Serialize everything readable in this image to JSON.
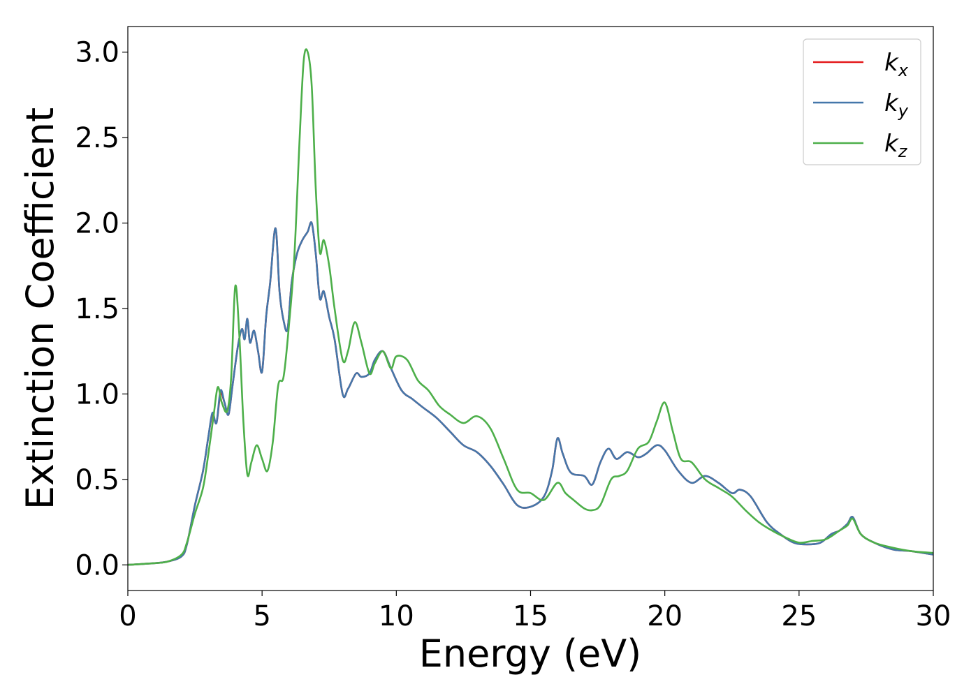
{
  "chart_data": {
    "type": "line",
    "xlabel": "Energy (eV)",
    "ylabel": "Extinction Coefficient",
    "xlim": [
      0,
      30
    ],
    "ylim": [
      -0.15,
      3.15
    ],
    "x_ticks": [
      0,
      5,
      10,
      15,
      20,
      25,
      30
    ],
    "x_tick_labels": [
      "0",
      "5",
      "10",
      "15",
      "20",
      "25",
      "30"
    ],
    "y_ticks": [
      0.0,
      0.5,
      1.0,
      1.5,
      2.0,
      2.5,
      3.0
    ],
    "y_tick_labels": [
      "0.0",
      "0.5",
      "1.0",
      "1.5",
      "2.0",
      "2.5",
      "3.0"
    ],
    "grid": false,
    "legend_position": "top-right",
    "series": [
      {
        "name": "k",
        "subscript": "x",
        "color": "#e41a1c",
        "x": [
          0,
          1,
          1.5,
          2,
          2.2,
          2.5,
          2.8,
          3.0,
          3.15,
          3.3,
          3.45,
          3.6,
          3.75,
          3.9,
          4.1,
          4.25,
          4.35,
          4.45,
          4.55,
          4.7,
          4.85,
          5.0,
          5.15,
          5.3,
          5.5,
          5.65,
          5.8,
          5.95,
          6.1,
          6.3,
          6.5,
          6.7,
          6.85,
          7.0,
          7.15,
          7.3,
          7.5,
          7.7,
          8.0,
          8.2,
          8.5,
          8.7,
          9.0,
          9.2,
          9.5,
          9.8,
          10.2,
          10.6,
          11.0,
          11.5,
          12.0,
          12.5,
          13.0,
          13.5,
          14.0,
          14.5,
          15.0,
          15.5,
          15.8,
          16.0,
          16.2,
          16.5,
          17.0,
          17.3,
          17.6,
          17.9,
          18.2,
          18.6,
          19.0,
          19.3,
          19.7,
          20.0,
          20.5,
          21.0,
          21.5,
          22.0,
          22.5,
          22.8,
          23.2,
          23.8,
          24.3,
          24.8,
          25.3,
          25.8,
          26.2,
          26.5,
          26.8,
          27.0,
          27.3,
          27.8,
          28.5,
          29.2,
          30
        ],
        "values": [
          0.0,
          0.01,
          0.02,
          0.05,
          0.12,
          0.35,
          0.55,
          0.75,
          0.88,
          0.83,
          1.0,
          0.95,
          0.88,
          1.05,
          1.28,
          1.38,
          1.32,
          1.44,
          1.3,
          1.37,
          1.25,
          1.13,
          1.45,
          1.65,
          1.97,
          1.6,
          1.43,
          1.38,
          1.65,
          1.82,
          1.9,
          1.95,
          2.0,
          1.82,
          1.56,
          1.6,
          1.45,
          1.32,
          1.0,
          1.03,
          1.12,
          1.1,
          1.12,
          1.2,
          1.25,
          1.15,
          1.02,
          0.97,
          0.92,
          0.86,
          0.78,
          0.7,
          0.66,
          0.58,
          0.47,
          0.35,
          0.34,
          0.4,
          0.55,
          0.74,
          0.65,
          0.54,
          0.52,
          0.47,
          0.6,
          0.68,
          0.62,
          0.66,
          0.63,
          0.65,
          0.7,
          0.67,
          0.55,
          0.48,
          0.52,
          0.48,
          0.42,
          0.44,
          0.4,
          0.25,
          0.18,
          0.13,
          0.12,
          0.13,
          0.18,
          0.2,
          0.24,
          0.28,
          0.18,
          0.13,
          0.09,
          0.08,
          0.06
        ]
      },
      {
        "name": "k",
        "subscript": "y",
        "color": "#4477aa",
        "x": [
          0,
          1,
          1.5,
          2,
          2.2,
          2.5,
          2.8,
          3.0,
          3.15,
          3.3,
          3.45,
          3.6,
          3.75,
          3.9,
          4.1,
          4.25,
          4.35,
          4.45,
          4.55,
          4.7,
          4.85,
          5.0,
          5.15,
          5.3,
          5.5,
          5.65,
          5.8,
          5.95,
          6.1,
          6.3,
          6.5,
          6.7,
          6.85,
          7.0,
          7.15,
          7.3,
          7.5,
          7.7,
          8.0,
          8.2,
          8.5,
          8.7,
          9.0,
          9.2,
          9.5,
          9.8,
          10.2,
          10.6,
          11.0,
          11.5,
          12.0,
          12.5,
          13.0,
          13.5,
          14.0,
          14.5,
          15.0,
          15.5,
          15.8,
          16.0,
          16.2,
          16.5,
          17.0,
          17.3,
          17.6,
          17.9,
          18.2,
          18.6,
          19.0,
          19.3,
          19.7,
          20.0,
          20.5,
          21.0,
          21.5,
          22.0,
          22.5,
          22.8,
          23.2,
          23.8,
          24.3,
          24.8,
          25.3,
          25.8,
          26.2,
          26.5,
          26.8,
          27.0,
          27.3,
          27.8,
          28.5,
          29.2,
          30
        ],
        "values": [
          0.0,
          0.01,
          0.02,
          0.05,
          0.12,
          0.35,
          0.55,
          0.75,
          0.89,
          0.83,
          1.02,
          0.95,
          0.88,
          1.05,
          1.28,
          1.38,
          1.32,
          1.44,
          1.3,
          1.37,
          1.25,
          1.13,
          1.45,
          1.65,
          1.97,
          1.6,
          1.43,
          1.38,
          1.65,
          1.82,
          1.9,
          1.95,
          2.0,
          1.82,
          1.56,
          1.6,
          1.45,
          1.32,
          1.0,
          1.03,
          1.12,
          1.1,
          1.12,
          1.2,
          1.25,
          1.15,
          1.02,
          0.97,
          0.92,
          0.86,
          0.78,
          0.7,
          0.66,
          0.58,
          0.47,
          0.35,
          0.34,
          0.4,
          0.55,
          0.74,
          0.65,
          0.54,
          0.52,
          0.47,
          0.6,
          0.68,
          0.62,
          0.66,
          0.63,
          0.65,
          0.7,
          0.67,
          0.55,
          0.48,
          0.52,
          0.48,
          0.42,
          0.44,
          0.4,
          0.25,
          0.18,
          0.13,
          0.12,
          0.13,
          0.18,
          0.2,
          0.24,
          0.28,
          0.18,
          0.13,
          0.09,
          0.08,
          0.06
        ]
      },
      {
        "name": "k",
        "subscript": "z",
        "color": "#4daf4a",
        "x": [
          0,
          1,
          1.5,
          2,
          2.2,
          2.5,
          2.8,
          3.0,
          3.2,
          3.35,
          3.5,
          3.7,
          3.85,
          4.0,
          4.15,
          4.3,
          4.45,
          4.6,
          4.8,
          5.0,
          5.2,
          5.4,
          5.6,
          5.8,
          6.0,
          6.2,
          6.4,
          6.55,
          6.7,
          6.85,
          7.0,
          7.15,
          7.3,
          7.5,
          7.7,
          8.0,
          8.2,
          8.45,
          8.7,
          9.0,
          9.2,
          9.5,
          9.8,
          10.0,
          10.4,
          10.8,
          11.2,
          11.6,
          12.0,
          12.5,
          13.0,
          13.5,
          14.0,
          14.5,
          15.0,
          15.5,
          16.0,
          16.3,
          16.6,
          17.0,
          17.3,
          17.6,
          18.0,
          18.3,
          18.6,
          19.0,
          19.4,
          19.7,
          20.0,
          20.3,
          20.6,
          21.0,
          21.5,
          22.0,
          22.5,
          23.0,
          23.5,
          24.0,
          24.5,
          25.0,
          25.5,
          26.0,
          26.5,
          26.8,
          27.0,
          27.3,
          27.8,
          28.5,
          29.2,
          30
        ],
        "values": [
          0.0,
          0.01,
          0.02,
          0.06,
          0.13,
          0.3,
          0.45,
          0.65,
          0.88,
          1.04,
          0.95,
          0.9,
          1.1,
          1.63,
          1.35,
          0.85,
          0.53,
          0.6,
          0.7,
          0.62,
          0.55,
          0.72,
          1.05,
          1.1,
          1.4,
          1.8,
          2.5,
          2.95,
          3.0,
          2.8,
          2.2,
          1.83,
          1.9,
          1.75,
          1.5,
          1.2,
          1.25,
          1.42,
          1.3,
          1.12,
          1.18,
          1.25,
          1.15,
          1.22,
          1.2,
          1.08,
          1.02,
          0.93,
          0.88,
          0.83,
          0.87,
          0.8,
          0.62,
          0.44,
          0.42,
          0.38,
          0.48,
          0.42,
          0.38,
          0.33,
          0.32,
          0.35,
          0.5,
          0.52,
          0.55,
          0.68,
          0.72,
          0.84,
          0.95,
          0.78,
          0.62,
          0.6,
          0.5,
          0.45,
          0.4,
          0.32,
          0.25,
          0.2,
          0.16,
          0.13,
          0.14,
          0.15,
          0.2,
          0.23,
          0.27,
          0.18,
          0.13,
          0.1,
          0.08,
          0.07
        ]
      }
    ]
  }
}
